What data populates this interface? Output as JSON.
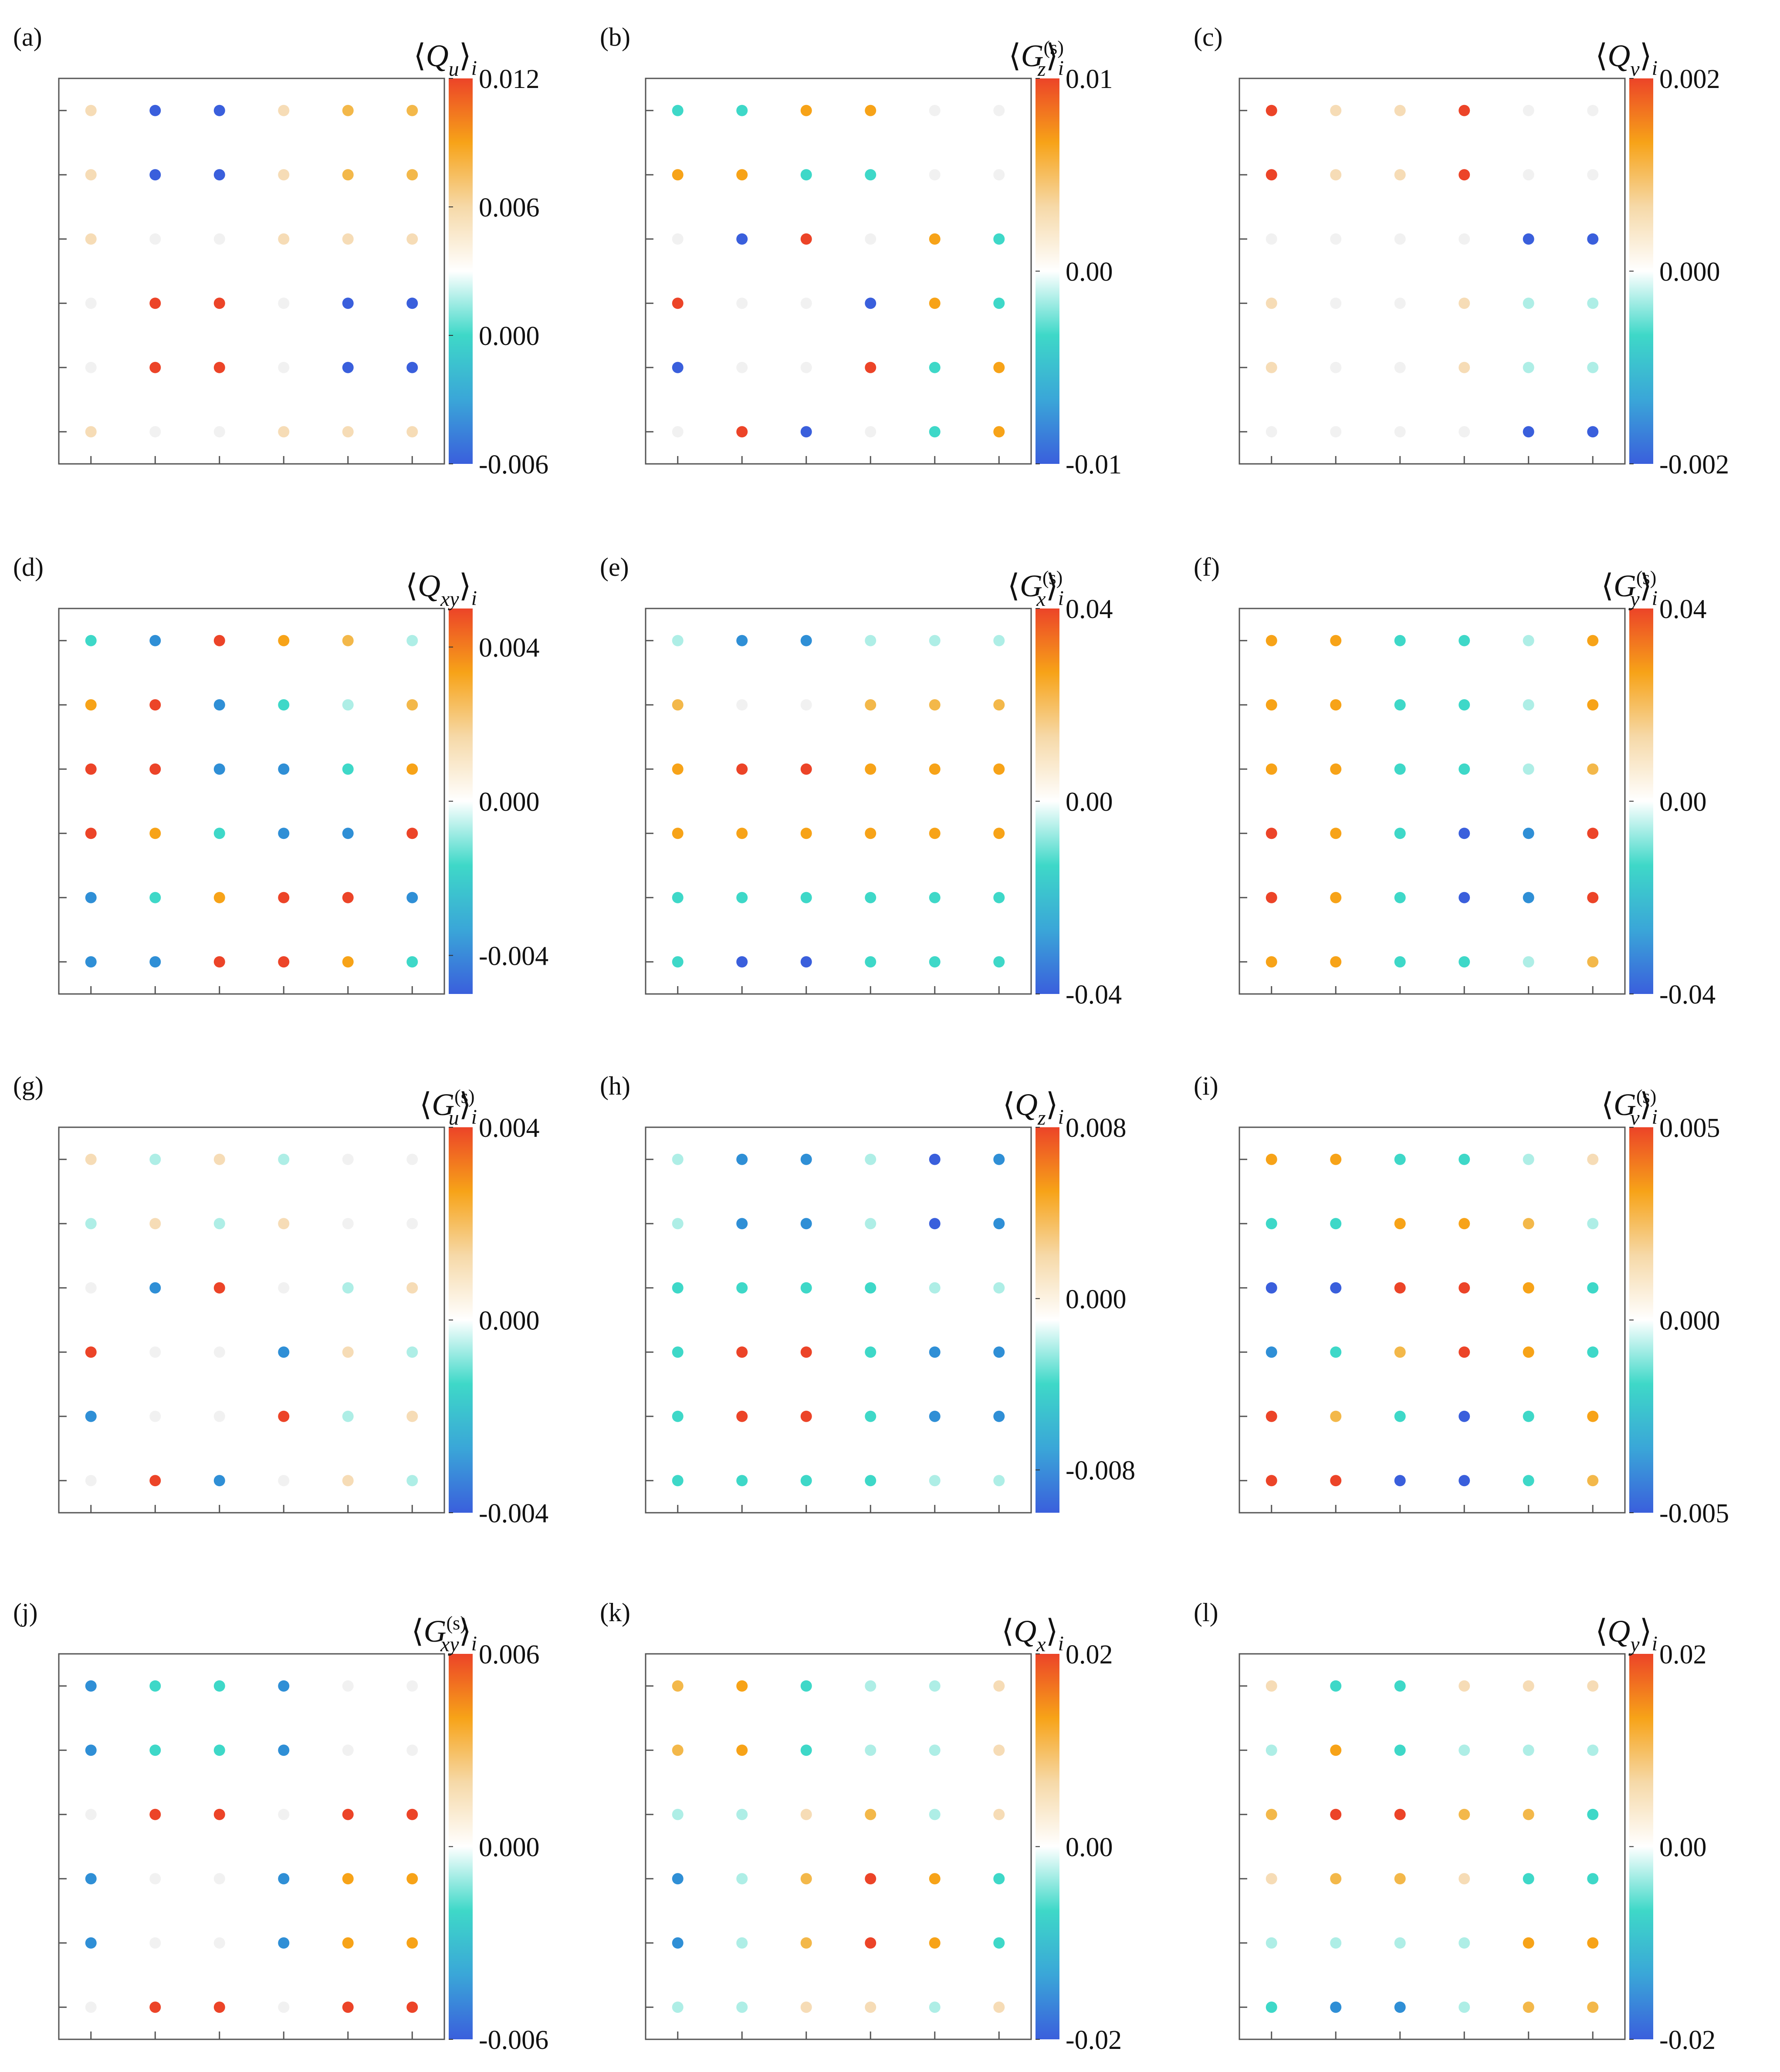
{
  "figure": {
    "type": "lattice-colormap-grid",
    "colormap_stops": [
      "#3a5fdc",
      "#3aa6d8",
      "#3ed8c8",
      "#ffffff",
      "#f6d9a8",
      "#f7a318",
      "#ec4428"
    ],
    "point_color_palette": {
      "-3": "#3a5fdc",
      "-2": "#2f8fd6",
      "-1": "#3ed8c8",
      "-0.5": "#aeeee6",
      "0": "#f1f1f1",
      "0.5": "#f6dcb6",
      "1": "#f3b84a",
      "2": "#f7a318",
      "3": "#ec4428"
    }
  },
  "chart_data": [
    {
      "type": "heatmap",
      "panel": "(a)",
      "quantity": "Q",
      "sub": "u",
      "sup": "",
      "vmin": -0.006,
      "vmax": 0.012,
      "ticks": [
        {
          "v": 0.012,
          "label": "0.012"
        },
        {
          "v": 0.006,
          "label": "0.006"
        },
        {
          "v": 0.0,
          "label": "0.000"
        },
        {
          "v": -0.006,
          "label": "-0.006"
        }
      ],
      "grid": [
        [
          0.5,
          -3,
          -3,
          0.5,
          1,
          1
        ],
        [
          0.5,
          -3,
          -3,
          0.5,
          1,
          1
        ],
        [
          0.5,
          0,
          0,
          0.5,
          0.5,
          0.5
        ],
        [
          0,
          3,
          3,
          0,
          -3,
          -3
        ],
        [
          0,
          3,
          3,
          0,
          -3,
          -3
        ],
        [
          0.5,
          0,
          0,
          0.5,
          0.5,
          0.5
        ]
      ]
    },
    {
      "type": "heatmap",
      "panel": "(b)",
      "quantity": "G",
      "sub": "z",
      "sup": "(s)",
      "vmin": -0.01,
      "vmax": 0.01,
      "ticks": [
        {
          "v": 0.01,
          "label": "0.01"
        },
        {
          "v": 0.0,
          "label": "0.00"
        },
        {
          "v": -0.01,
          "label": "-0.01"
        }
      ],
      "grid": [
        [
          -1,
          -1,
          2,
          2,
          0,
          0
        ],
        [
          2,
          2,
          -1,
          -1,
          0,
          0
        ],
        [
          0,
          -3,
          3,
          0,
          2,
          -1
        ],
        [
          3,
          0,
          0,
          -3,
          2,
          -1
        ],
        [
          -3,
          0,
          0,
          3,
          -1,
          2
        ],
        [
          0,
          3,
          -3,
          0,
          -1,
          2
        ]
      ]
    },
    {
      "type": "heatmap",
      "panel": "(c)",
      "quantity": "Q",
      "sub": "v",
      "sup": "",
      "vmin": -0.002,
      "vmax": 0.002,
      "ticks": [
        {
          "v": 0.002,
          "label": "0.002"
        },
        {
          "v": 0.0,
          "label": "0.000"
        },
        {
          "v": -0.002,
          "label": "-0.002"
        }
      ],
      "grid": [
        [
          3,
          0.5,
          0.5,
          3,
          0,
          0
        ],
        [
          3,
          0.5,
          0.5,
          3,
          0,
          0
        ],
        [
          0,
          0,
          0,
          0,
          -3,
          -3
        ],
        [
          0.5,
          0,
          0,
          0.5,
          -0.5,
          -0.5
        ],
        [
          0.5,
          0,
          0,
          0.5,
          -0.5,
          -0.5
        ],
        [
          0,
          0,
          0,
          0,
          -3,
          -3
        ]
      ]
    },
    {
      "type": "heatmap",
      "panel": "(d)",
      "quantity": "Q",
      "sub": "xy",
      "sup": "",
      "vmin": -0.005,
      "vmax": 0.005,
      "ticks": [
        {
          "v": 0.004,
          "label": "0.004"
        },
        {
          "v": 0.0,
          "label": "0.000"
        },
        {
          "v": -0.004,
          "label": "-0.004"
        }
      ],
      "grid": [
        [
          -1,
          -2,
          3,
          2,
          1,
          -0.5
        ],
        [
          2,
          3,
          -2,
          -1,
          -0.5,
          1
        ],
        [
          3,
          3,
          -2,
          -2,
          -1,
          2
        ],
        [
          3,
          2,
          -1,
          -2,
          -2,
          3
        ],
        [
          -2,
          -1,
          2,
          3,
          3,
          -2
        ],
        [
          -2,
          -2,
          3,
          3,
          2,
          -1
        ]
      ]
    },
    {
      "type": "heatmap",
      "panel": "(e)",
      "quantity": "G",
      "sub": "x",
      "sup": "(s)",
      "vmin": -0.04,
      "vmax": 0.04,
      "ticks": [
        {
          "v": 0.04,
          "label": "0.04"
        },
        {
          "v": 0.0,
          "label": "0.00"
        },
        {
          "v": -0.04,
          "label": "-0.04"
        }
      ],
      "grid": [
        [
          -0.5,
          -2,
          -2,
          -0.5,
          -0.5,
          -0.5
        ],
        [
          1,
          2.5,
          2.5,
          1,
          1,
          1
        ],
        [
          2,
          3,
          3,
          2,
          2,
          2
        ],
        [
          2,
          2,
          2,
          2,
          2,
          2
        ],
        [
          -1,
          -1,
          -1,
          -1,
          -1,
          -1
        ],
        [
          -1,
          -3,
          -3,
          -1,
          -1,
          -1
        ]
      ]
    },
    {
      "type": "heatmap",
      "panel": "(f)",
      "quantity": "G",
      "sub": "y",
      "sup": "(s)",
      "vmin": -0.04,
      "vmax": 0.04,
      "ticks": [
        {
          "v": 0.04,
          "label": "0.04"
        },
        {
          "v": 0.0,
          "label": "0.00"
        },
        {
          "v": -0.04,
          "label": "-0.04"
        }
      ],
      "grid": [
        [
          2,
          2,
          -1,
          -1,
          -0.5,
          2
        ],
        [
          2,
          2,
          -1,
          -1,
          -0.5,
          2
        ],
        [
          2,
          2,
          -1,
          -1,
          -0.5,
          1
        ],
        [
          3,
          2,
          -1,
          -3,
          -2,
          3
        ],
        [
          3,
          2,
          -1,
          -3,
          -2,
          3
        ],
        [
          2,
          2,
          -1,
          -1,
          -0.5,
          1
        ]
      ]
    },
    {
      "type": "heatmap",
      "panel": "(g)",
      "quantity": "G",
      "sub": "u",
      "sup": "(s)",
      "vmin": -0.004,
      "vmax": 0.004,
      "ticks": [
        {
          "v": 0.004,
          "label": "0.004"
        },
        {
          "v": 0.0,
          "label": "0.000"
        },
        {
          "v": -0.004,
          "label": "-0.004"
        }
      ],
      "grid": [
        [
          0.5,
          -0.5,
          0.5,
          -0.5,
          0,
          0
        ],
        [
          -0.5,
          0.5,
          -0.5,
          0.5,
          0,
          0
        ],
        [
          0,
          -2,
          3,
          0,
          -0.5,
          0.5
        ],
        [
          3,
          0,
          0,
          -2,
          0.5,
          -0.5
        ],
        [
          -2,
          0,
          0,
          3,
          -0.5,
          0.5
        ],
        [
          0,
          3,
          -2,
          0,
          0.5,
          -0.5
        ]
      ]
    },
    {
      "type": "heatmap",
      "panel": "(h)",
      "quantity": "Q",
      "sub": "z",
      "sup": "",
      "vmin": -0.01,
      "vmax": 0.008,
      "ticks": [
        {
          "v": 0.008,
          "label": "0.008"
        },
        {
          "v": 0.0,
          "label": "0.000"
        },
        {
          "v": -0.008,
          "label": "-0.008"
        }
      ],
      "grid": [
        [
          -0.5,
          -2,
          -2,
          -0.5,
          -3,
          -2
        ],
        [
          -0.5,
          -2,
          -2,
          -0.5,
          -3,
          -2
        ],
        [
          -1,
          -1,
          -1,
          -1,
          -0.5,
          -0.5
        ],
        [
          -1,
          3,
          3,
          -1,
          -2,
          -2
        ],
        [
          -1,
          3,
          3,
          -1,
          -2,
          -2
        ],
        [
          -1,
          -1,
          -1,
          -1,
          -0.5,
          -0.5
        ]
      ]
    },
    {
      "type": "heatmap",
      "panel": "(i)",
      "quantity": "G",
      "sub": "v",
      "sup": "(s)",
      "vmin": -0.005,
      "vmax": 0.005,
      "ticks": [
        {
          "v": 0.005,
          "label": "0.005"
        },
        {
          "v": 0.0,
          "label": "0.000"
        },
        {
          "v": -0.005,
          "label": "-0.005"
        }
      ],
      "grid": [
        [
          2,
          2,
          -1,
          -1,
          -0.5,
          0.5
        ],
        [
          -1,
          -1,
          2,
          2,
          1,
          -0.5
        ],
        [
          -3,
          -3,
          3,
          3,
          2,
          -1
        ],
        [
          -2,
          -1,
          1,
          3,
          2,
          -1
        ],
        [
          3,
          1,
          -1,
          -3,
          -1,
          2
        ],
        [
          3,
          3,
          -3,
          -3,
          -1,
          1
        ]
      ]
    },
    {
      "type": "heatmap",
      "panel": "(j)",
      "quantity": "G",
      "sub": "xy",
      "sup": "(s)",
      "vmin": -0.006,
      "vmax": 0.006,
      "ticks": [
        {
          "v": 0.006,
          "label": "0.006"
        },
        {
          "v": 0.0,
          "label": "0.000"
        },
        {
          "v": -0.006,
          "label": "-0.006"
        }
      ],
      "grid": [
        [
          -2,
          -1,
          -1,
          -2,
          0,
          0
        ],
        [
          -2,
          -1,
          -1,
          -2,
          0,
          0
        ],
        [
          0,
          3,
          3,
          0,
          3,
          3
        ],
        [
          -2,
          0,
          0,
          -2,
          2,
          2
        ],
        [
          -2,
          0,
          0,
          -2,
          2,
          2
        ],
        [
          0,
          3,
          3,
          0,
          3,
          3
        ]
      ]
    },
    {
      "type": "heatmap",
      "panel": "(k)",
      "quantity": "Q",
      "sub": "x",
      "sup": "",
      "vmin": -0.02,
      "vmax": 0.02,
      "ticks": [
        {
          "v": 0.02,
          "label": "0.02"
        },
        {
          "v": 0.0,
          "label": "0.00"
        },
        {
          "v": -0.02,
          "label": "-0.02"
        }
      ],
      "grid": [
        [
          1,
          2,
          -1,
          -0.5,
          -0.5,
          0.5
        ],
        [
          1,
          2,
          -1,
          -0.5,
          -0.5,
          0.5
        ],
        [
          -0.5,
          -0.5,
          0.5,
          1,
          -0.5,
          0.5
        ],
        [
          -2,
          -0.5,
          1,
          3,
          2,
          -1
        ],
        [
          -2,
          -0.5,
          1,
          3,
          2,
          -1
        ],
        [
          -0.5,
          -0.5,
          0.5,
          0.5,
          -0.5,
          0.5
        ]
      ]
    },
    {
      "type": "heatmap",
      "panel": "(l)",
      "quantity": "Q",
      "sub": "y",
      "sup": "",
      "vmin": -0.02,
      "vmax": 0.02,
      "ticks": [
        {
          "v": 0.02,
          "label": "0.02"
        },
        {
          "v": 0.0,
          "label": "0.00"
        },
        {
          "v": -0.02,
          "label": "-0.02"
        }
      ],
      "grid": [
        [
          0.5,
          -1,
          -1,
          0.5,
          0.5,
          0.5
        ],
        [
          -0.5,
          2,
          -1,
          -0.5,
          -0.5,
          -0.5
        ],
        [
          1,
          3,
          3,
          1,
          1,
          -1
        ],
        [
          0.5,
          1,
          1,
          0.5,
          -1,
          -1
        ],
        [
          -0.5,
          -0.5,
          -0.5,
          -0.5,
          2,
          2
        ],
        [
          -1,
          -2,
          -2,
          -0.5,
          1,
          1
        ]
      ]
    }
  ]
}
